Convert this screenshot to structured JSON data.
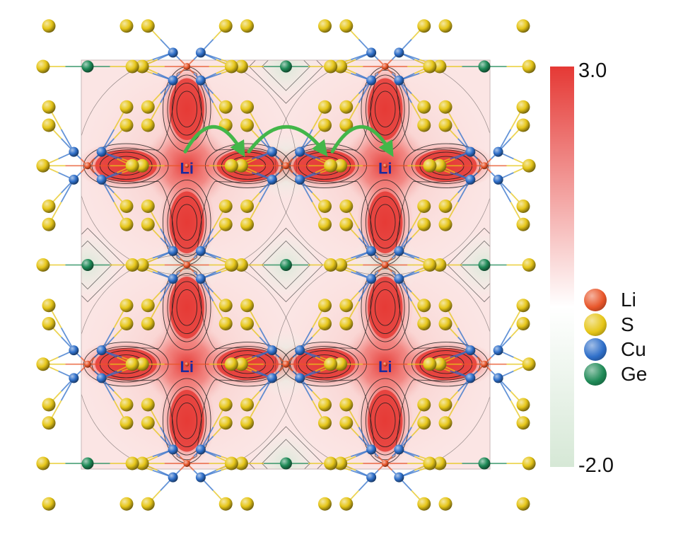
{
  "colorbar": {
    "max_label": "3.0",
    "min_label": "-2.0",
    "max_value": 3.0,
    "min_value": -2.0,
    "color_high": "#e53935",
    "color_zero": "#ffffff",
    "color_low": "#d6e8d6"
  },
  "site_label": "Li",
  "legend": {
    "items": [
      {
        "label": "Li",
        "color": "#e8562a"
      },
      {
        "label": "S",
        "color": "#e6c619"
      },
      {
        "label": "Cu",
        "color": "#2f6fc9"
      },
      {
        "label": "Ge",
        "color": "#1f8a57"
      }
    ]
  },
  "colors": {
    "hop_arrow": "#43b649",
    "contour": "#1c1c1c",
    "li_text": "#1a2a9e"
  }
}
